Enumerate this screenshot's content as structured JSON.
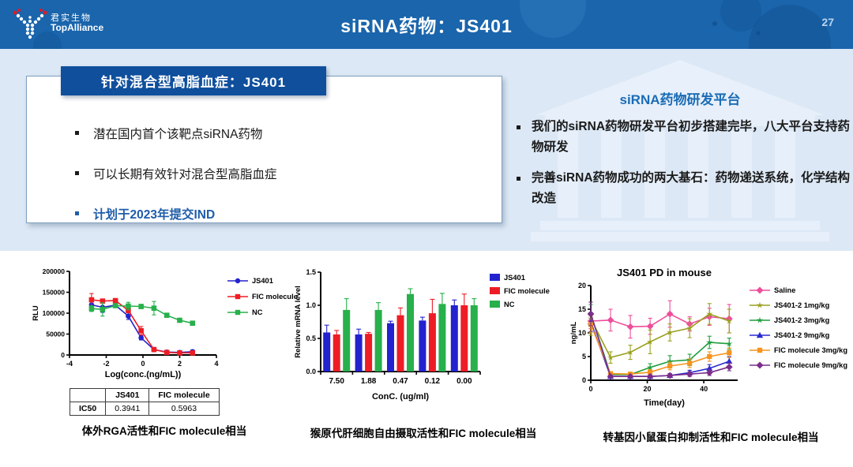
{
  "header": {
    "logo": {
      "cn": "君实生物",
      "en": "TopAlliance"
    },
    "title": "siRNA药物：JS401",
    "page_number": "27"
  },
  "left_panel": {
    "tab_title": "针对混合型高脂血症：JS401",
    "bullets": [
      "潜在国内首个该靶点siRNA药物",
      "可以长期有效针对混合型高脂血症",
      "计划于2023年提交IND"
    ]
  },
  "right_panel": {
    "title": "siRNA药物研发平台",
    "bullets": [
      "我们的siRNA药物研发平台初步搭建完毕，八大平台支持药物研发",
      "完善siRNA药物成功的两大基石：药物递送系统，化学结构改造"
    ]
  },
  "colors": {
    "header_blue": "#1a65ac",
    "band_blue": "#dce8f5",
    "tab_blue": "#0f4f9c",
    "accent_blue": "#1f5caa",
    "series_blue": "#2222cf",
    "series_red": "#ee1c25",
    "series_green": "#27b04b"
  },
  "chart_data": [
    {
      "id": "rga",
      "type": "line",
      "title": "",
      "xlabel": "Log(conc.(ng/mL))",
      "ylabel": "RLU",
      "xlim": [
        -4,
        4
      ],
      "ylim": [
        0,
        200000
      ],
      "xticks": [
        -4,
        -2,
        0,
        2,
        4
      ],
      "yticks": [
        0,
        50000,
        100000,
        150000,
        200000
      ],
      "ytick_labels": [
        "0",
        "50000",
        "100000",
        "150000",
        "200000"
      ],
      "x": [
        -2.8,
        -2.2,
        -1.5,
        -0.8,
        -0.1,
        0.6,
        1.3,
        2.0,
        2.7
      ],
      "series": [
        {
          "name": "JS401",
          "color": "#2222cf",
          "marker": "circle",
          "values": [
            120000,
            114000,
            119000,
            93000,
            41000,
            13000,
            7000,
            6000,
            8000
          ],
          "err": [
            8000,
            12000,
            5000,
            8000,
            5000,
            3000,
            2000,
            2000,
            4000
          ]
        },
        {
          "name": "FIC molecule",
          "color": "#ee1c25",
          "marker": "square",
          "values": [
            132000,
            129000,
            130000,
            107000,
            58000,
            13000,
            6000,
            5000,
            5000
          ],
          "err": [
            15000,
            4000,
            5000,
            6000,
            10000,
            3000,
            2000,
            1500,
            1500
          ]
        },
        {
          "name": "NC",
          "color": "#27b04b",
          "marker": "square",
          "values": [
            111000,
            109000,
            118000,
            117000,
            116000,
            112000,
            95000,
            83000,
            76000
          ],
          "err": [
            7000,
            16000,
            4000,
            9000,
            5000,
            16000,
            4000,
            4000,
            3000
          ]
        }
      ],
      "table": {
        "headers": [
          "",
          "JS401",
          "FIC molecule"
        ],
        "rows": [
          [
            "IC50",
            "0.3941",
            "0.5963"
          ]
        ]
      },
      "caption": "体外RGA活性和FIC molecule相当"
    },
    {
      "id": "uptake",
      "type": "bar",
      "title": "",
      "xlabel": "ConC. (ug/ml)",
      "ylabel": "Relative  mRNA level",
      "ylim": [
        0,
        1.5
      ],
      "yticks": [
        0,
        0.5,
        1.0,
        1.5
      ],
      "ytick_labels": [
        "0.0",
        "0.5",
        "1.0",
        "1.5"
      ],
      "categories": [
        "7.50",
        "1.88",
        "0.47",
        "0.12",
        "0.00"
      ],
      "series": [
        {
          "name": "JS401",
          "color": "#2222cf",
          "values": [
            0.59,
            0.56,
            0.73,
            0.77,
            1.0
          ],
          "err": [
            0.11,
            0.08,
            0.03,
            0.05,
            0.08
          ]
        },
        {
          "name": "FIC molecule",
          "color": "#ee1c25",
          "values": [
            0.56,
            0.57,
            0.85,
            0.88,
            1.0
          ],
          "err": [
            0.06,
            0.02,
            0.11,
            0.21,
            0.17
          ]
        },
        {
          "name": "NC",
          "color": "#27b04b",
          "values": [
            0.93,
            0.93,
            1.17,
            1.02,
            1.0
          ],
          "err": [
            0.17,
            0.11,
            0.08,
            0.16,
            0.1
          ]
        }
      ],
      "caption": "猴原代肝细胞自由摄取活性和FIC molecule相当"
    },
    {
      "id": "pd",
      "type": "line",
      "title": "JS401 PD in mouse",
      "xlabel": "Time(day)",
      "ylabel": "ng/mL",
      "xlim": [
        0,
        52
      ],
      "ylim": [
        0,
        20
      ],
      "xticks": [
        0,
        20,
        40
      ],
      "yticks": [
        0,
        5,
        10,
        15,
        20
      ],
      "ytick_labels": [
        "0",
        "5",
        "10",
        "15",
        "20"
      ],
      "x": [
        0,
        7,
        14,
        21,
        28,
        35,
        42,
        49
      ],
      "series": [
        {
          "name": "Saline",
          "color": "#ee4d9b",
          "marker": "diamond",
          "values": [
            12.5,
            12.7,
            11.3,
            11.4,
            14.0,
            11.9,
            13.4,
            13.0
          ],
          "err": [
            1.6,
            2.3,
            2.4,
            1.7,
            2.8,
            1.5,
            1.8,
            3.0
          ]
        },
        {
          "name": "JS401-2 1mg/kg",
          "color": "#9aa01e",
          "marker": "star",
          "values": [
            13.0,
            4.8,
            5.9,
            8.1,
            10.1,
            11.0,
            14.0,
            12.5
          ],
          "err": [
            3.5,
            1.2,
            1.5,
            2.5,
            1.8,
            2.0,
            2.2,
            2.5
          ]
        },
        {
          "name": "JS401-2 3mg/kg",
          "color": "#1f9e3d",
          "marker": "star",
          "values": [
            14.0,
            1.2,
            1.2,
            2.7,
            4.0,
            4.3,
            8.0,
            7.7
          ],
          "err": [
            2.0,
            0.5,
            0.4,
            0.8,
            1.2,
            1.2,
            1.3,
            1.2
          ]
        },
        {
          "name": "JS401-2 9mg/kg",
          "color": "#2a2ad0",
          "marker": "triangle",
          "values": [
            12.3,
            0.8,
            0.8,
            0.8,
            1.0,
            1.6,
            2.5,
            4.0
          ],
          "err": [
            2.0,
            0.3,
            0.3,
            0.3,
            0.4,
            0.5,
            0.8,
            1.0
          ]
        },
        {
          "name": "FIC molecule 3mg/kg",
          "color": "#f7941d",
          "marker": "square",
          "values": [
            11.8,
            1.4,
            1.3,
            1.7,
            3.0,
            3.6,
            5.0,
            5.8
          ],
          "err": [
            1.8,
            0.4,
            0.4,
            0.5,
            0.8,
            0.9,
            1.0,
            1.0
          ]
        },
        {
          "name": "FIC molecule 9mg/kg",
          "color": "#7b2d8b",
          "marker": "diamond",
          "values": [
            14.0,
            0.8,
            0.8,
            0.8,
            1.0,
            1.3,
            1.6,
            2.8
          ],
          "err": [
            2.5,
            0.3,
            0.3,
            0.3,
            0.4,
            0.5,
            0.6,
            0.8
          ]
        }
      ],
      "caption": "转基因小鼠蛋白抑制活性和FIC molecule相当"
    }
  ]
}
